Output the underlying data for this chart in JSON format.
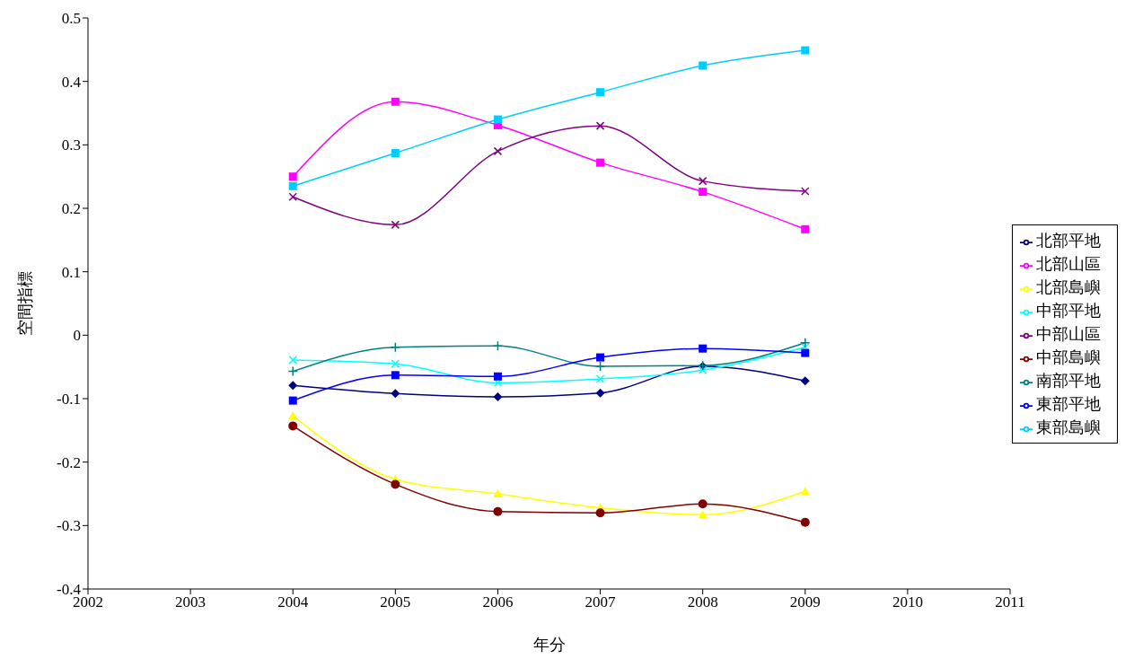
{
  "chart_data": {
    "type": "line",
    "xlabel": "年分",
    "ylabel": "空間指標",
    "x": [
      2004,
      2005,
      2006,
      2007,
      2008,
      2009
    ],
    "xlim": [
      2002,
      2011
    ],
    "xticks": [
      2002,
      2003,
      2004,
      2005,
      2006,
      2007,
      2008,
      2009,
      2010,
      2011
    ],
    "ylim": [
      -0.4,
      0.5
    ],
    "yticks": [
      -0.4,
      -0.3,
      -0.2,
      -0.1,
      0,
      0.1,
      0.2,
      0.3,
      0.4,
      0.5
    ],
    "grid": false,
    "legend": "right",
    "series": [
      {
        "name": "北部平地",
        "color": "#000080",
        "marker": "diamond",
        "values": [
          -0.079,
          -0.092,
          -0.097,
          -0.091,
          -0.049,
          -0.072
        ]
      },
      {
        "name": "北部山區",
        "color": "#ff00ff",
        "marker": "square",
        "values": [
          0.25,
          0.368,
          0.331,
          0.272,
          0.226,
          0.167
        ]
      },
      {
        "name": "北部島嶼",
        "color": "#ffff00",
        "marker": "triangle",
        "values": [
          -0.127,
          -0.227,
          -0.25,
          -0.272,
          -0.283,
          -0.246
        ]
      },
      {
        "name": "中部平地",
        "color": "#00ffff",
        "marker": "cross",
        "values": [
          -0.039,
          -0.045,
          -0.075,
          -0.069,
          -0.055,
          -0.019
        ]
      },
      {
        "name": "中部山區",
        "color": "#800080",
        "marker": "cross",
        "values": [
          0.218,
          0.174,
          0.29,
          0.33,
          0.243,
          0.227
        ]
      },
      {
        "name": "中部島嶼",
        "color": "#800000",
        "marker": "circle",
        "values": [
          -0.143,
          -0.235,
          -0.278,
          -0.28,
          -0.266,
          -0.295
        ]
      },
      {
        "name": "南部平地",
        "color": "#008080",
        "marker": "plus",
        "values": [
          -0.057,
          -0.019,
          -0.017,
          -0.049,
          -0.048,
          -0.012
        ]
      },
      {
        "name": "東部平地",
        "color": "#0000ff",
        "marker": "square",
        "values": [
          -0.103,
          -0.063,
          -0.065,
          -0.035,
          -0.021,
          -0.028
        ]
      },
      {
        "name": "東部島嶼",
        "color": "#00ccff",
        "marker": "square",
        "values": [
          0.235,
          0.287,
          0.34,
          0.383,
          0.425,
          0.449
        ]
      }
    ]
  }
}
